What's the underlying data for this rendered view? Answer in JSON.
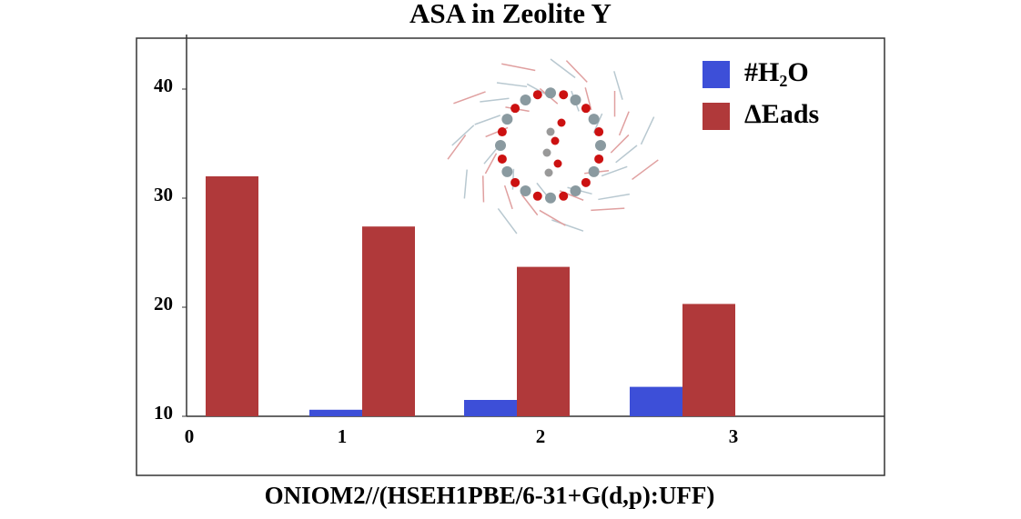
{
  "chart_data": {
    "type": "bar",
    "title": "ASA in Zeolite Y",
    "x_label": "ONIOM2//(HSEH1PBE/6-31+G(d,p):UFF)",
    "categories": [
      "0",
      "1",
      "2",
      "3"
    ],
    "series": [
      {
        "name": "#H₂O",
        "color": "#3d4fd8",
        "values": [
          null,
          10.6,
          11.5,
          12.7
        ]
      },
      {
        "name": "ΔEads",
        "color": "#b0393a",
        "values": [
          32,
          27.4,
          23.7,
          20.3
        ]
      }
    ],
    "ylim": [
      10,
      45
    ],
    "yticks": [
      10,
      20,
      30,
      40
    ],
    "legend": "upper right"
  }
}
